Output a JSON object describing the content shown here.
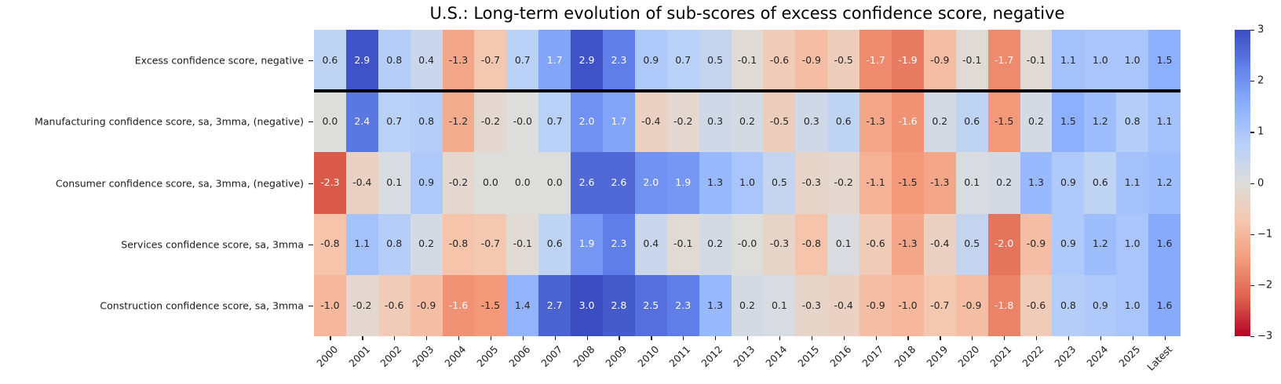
{
  "title": "U.S.: Long-term evolution of sub-scores of excess confidence score, negative",
  "chart_data": {
    "type": "heatmap",
    "title": "U.S.: Long-term evolution of sub-scores of excess confidence score, negative",
    "rows": [
      "Excess confidence score, negative",
      "Manufacturing confidence score, sa, 3mma, (negative)",
      "Consumer confidence score, sa, 3mma, (negative)",
      "Services confidence score, sa, 3mma",
      "Construction confidence score, sa, 3mma"
    ],
    "columns": [
      "2000",
      "2001",
      "2002",
      "2003",
      "2004",
      "2005",
      "2006",
      "2007",
      "2008",
      "2009",
      "2010",
      "2011",
      "2012",
      "2013",
      "2014",
      "2015",
      "2016",
      "2017",
      "2018",
      "2019",
      "2020",
      "2021",
      "2022",
      "2023",
      "2024",
      "2025",
      "Latest"
    ],
    "values": [
      [
        "0.6",
        "2.9",
        "0.8",
        "0.4",
        "-1.3",
        "-0.7",
        "0.7",
        "1.7",
        "2.9",
        "2.3",
        "0.9",
        "0.7",
        "0.5",
        "-0.1",
        "-0.6",
        "-0.9",
        "-0.5",
        "-1.7",
        "-1.9",
        "-0.9",
        "-0.1",
        "-1.7",
        "-0.1",
        "1.1",
        "1.0",
        "1.0",
        "1.5"
      ],
      [
        "0.0",
        "2.4",
        "0.7",
        "0.8",
        "-1.2",
        "-0.2",
        "-0.0",
        "0.7",
        "2.0",
        "1.7",
        "-0.4",
        "-0.2",
        "0.3",
        "0.2",
        "-0.5",
        "0.3",
        "0.6",
        "-1.3",
        "-1.6",
        "0.2",
        "0.6",
        "-1.5",
        "0.2",
        "1.5",
        "1.2",
        "0.8",
        "1.1"
      ],
      [
        "-2.3",
        "-0.4",
        "0.1",
        "0.9",
        "-0.2",
        "0.0",
        "0.0",
        "0.0",
        "2.6",
        "2.6",
        "2.0",
        "1.9",
        "1.3",
        "1.0",
        "0.5",
        "-0.3",
        "-0.2",
        "-1.1",
        "-1.5",
        "-1.3",
        "0.1",
        "0.2",
        "1.3",
        "0.9",
        "0.6",
        "1.1",
        "1.2"
      ],
      [
        "-0.8",
        "1.1",
        "0.8",
        "0.2",
        "-0.8",
        "-0.7",
        "-0.1",
        "0.6",
        "1.9",
        "2.3",
        "0.4",
        "-0.1",
        "0.2",
        "-0.0",
        "-0.3",
        "-0.8",
        "0.1",
        "-0.6",
        "-1.3",
        "-0.4",
        "0.5",
        "-2.0",
        "-0.9",
        "0.9",
        "1.2",
        "1.0",
        "1.6"
      ],
      [
        "-1.0",
        "-0.2",
        "-0.6",
        "-0.9",
        "-1.6",
        "-1.5",
        "1.4",
        "2.7",
        "3.0",
        "2.8",
        "2.5",
        "2.3",
        "1.3",
        "0.2",
        "0.1",
        "-0.3",
        "-0.4",
        "-0.9",
        "-1.0",
        "-0.7",
        "-0.9",
        "-1.8",
        "-0.6",
        "0.8",
        "0.9",
        "1.0",
        "1.6"
      ]
    ],
    "vmin": -3,
    "vmax": 3,
    "colormap": {
      "name": "coolwarm_r",
      "anchors": [
        [
          -3.0,
          "#b40426"
        ],
        [
          -2.25,
          "#de614d"
        ],
        [
          -1.5,
          "#f49a7a"
        ],
        [
          -0.75,
          "#f5c7ae"
        ],
        [
          0.0,
          "#dddddb"
        ],
        [
          0.75,
          "#b8d0f9"
        ],
        [
          1.5,
          "#8db0fe"
        ],
        [
          2.25,
          "#6282ea"
        ],
        [
          3.0,
          "#3b4cc0"
        ]
      ]
    },
    "colorbar": {
      "position": "right",
      "ticks": [
        3,
        2,
        1,
        0,
        -1,
        -2,
        -3
      ],
      "labels": [
        "3",
        "2",
        "1",
        "0",
        "−1",
        "−2",
        "−3"
      ]
    },
    "separator_after_row": 0,
    "annotation_colors": {
      "dark": "#262626",
      "light": "#ffffff"
    },
    "axis_color": "#1a1a1a",
    "grid": false,
    "legend": "none",
    "xlabel": "",
    "ylabel": ""
  }
}
